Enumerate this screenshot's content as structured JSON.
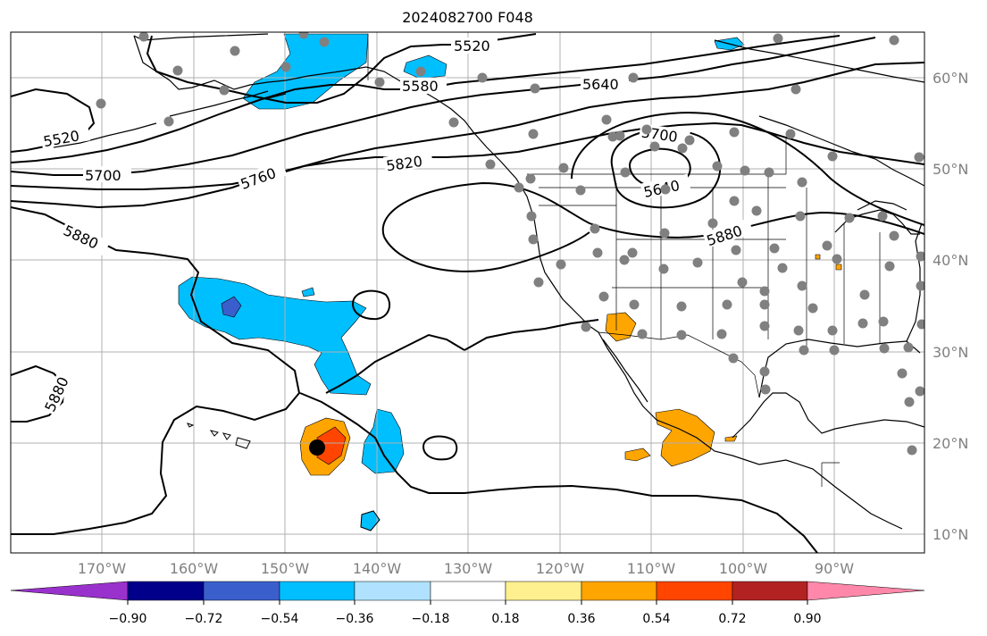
{
  "title": "2024082700 F048",
  "map": {
    "lat_labels": [
      "60°N",
      "50°N",
      "40°N",
      "30°N",
      "20°N",
      "10°N"
    ],
    "lon_labels": [
      "170°W",
      "160°W",
      "150°W",
      "140°W",
      "130°W",
      "120°W",
      "110°W",
      "100°W",
      "90°W"
    ],
    "contour_labels": [
      "5520",
      "5520",
      "5580",
      "5640",
      "5700",
      "5700",
      "5760",
      "5820",
      "5640",
      "5880",
      "5880",
      "5880"
    ],
    "station_marker_color": "#808080",
    "typhoon_center_color": "#000000"
  },
  "colorbar": {
    "colors": [
      "#9932cc",
      "#00008b",
      "#3a5fcd",
      "#00bfff",
      "#b0e2ff",
      "#ffffff",
      "#fff08f",
      "#ffa500",
      "#ff4500",
      "#b22222",
      "#ff88aa"
    ],
    "tick_labels": [
      "−0.90",
      "−0.72",
      "−0.54",
      "−0.36",
      "−0.18",
      "0.18",
      "0.36",
      "0.54",
      "0.72",
      "0.90"
    ]
  }
}
